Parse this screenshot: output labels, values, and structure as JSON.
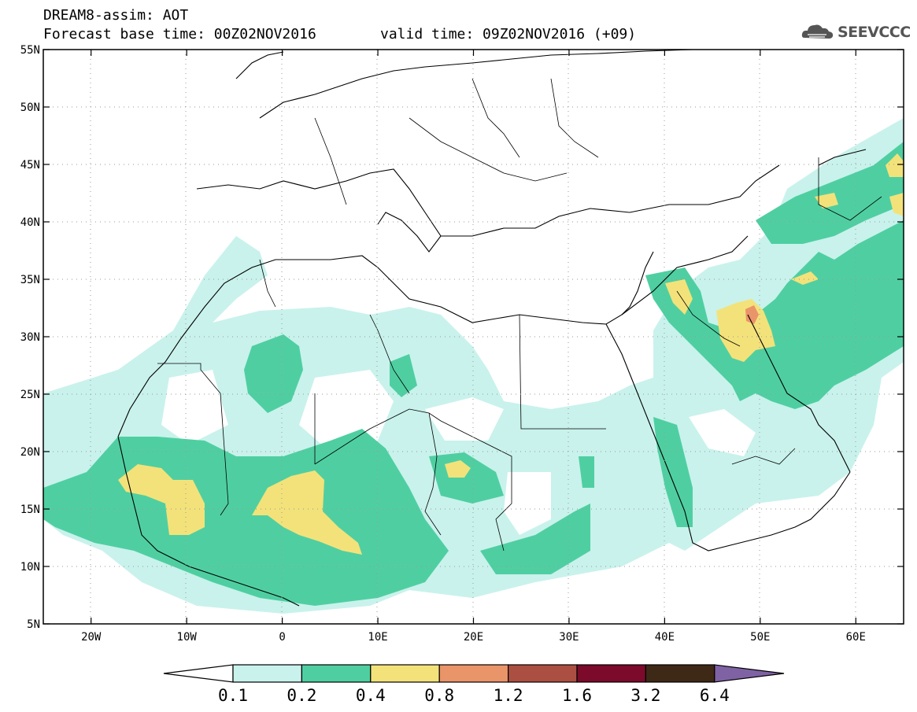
{
  "header": {
    "title": "DREAM8-assim: AOT",
    "base_time": "Forecast base time: 00Z02NOV2016",
    "valid_time": "valid time: 09Z02NOV2016 (+09)"
  },
  "logo": {
    "text": "SEEVCCC",
    "icon": "cloud-icon"
  },
  "map": {
    "lat_labels": [
      "55N",
      "50N",
      "45N",
      "40N",
      "35N",
      "30N",
      "25N",
      "20N",
      "15N",
      "10N",
      "5N"
    ],
    "lon_labels": [
      "20W",
      "10W",
      "0",
      "10E",
      "20E",
      "30E",
      "40E",
      "50E",
      "60E"
    ],
    "lat_range": [
      5,
      55
    ],
    "lon_range": [
      -25,
      65
    ],
    "grid": "dotted"
  },
  "colorbar": {
    "labels": [
      "0.1",
      "0.2",
      "0.4",
      "0.8",
      "1.2",
      "1.6",
      "3.2",
      "6.4"
    ],
    "colors": [
      "#c9f2ec",
      "#4fcfa1",
      "#f3e27a",
      "#ea9469",
      "#ab4f42",
      "#7c0a2b",
      "#3e2916"
    ],
    "under_color": "#ffffff",
    "over_color": "#7f62a4"
  }
}
